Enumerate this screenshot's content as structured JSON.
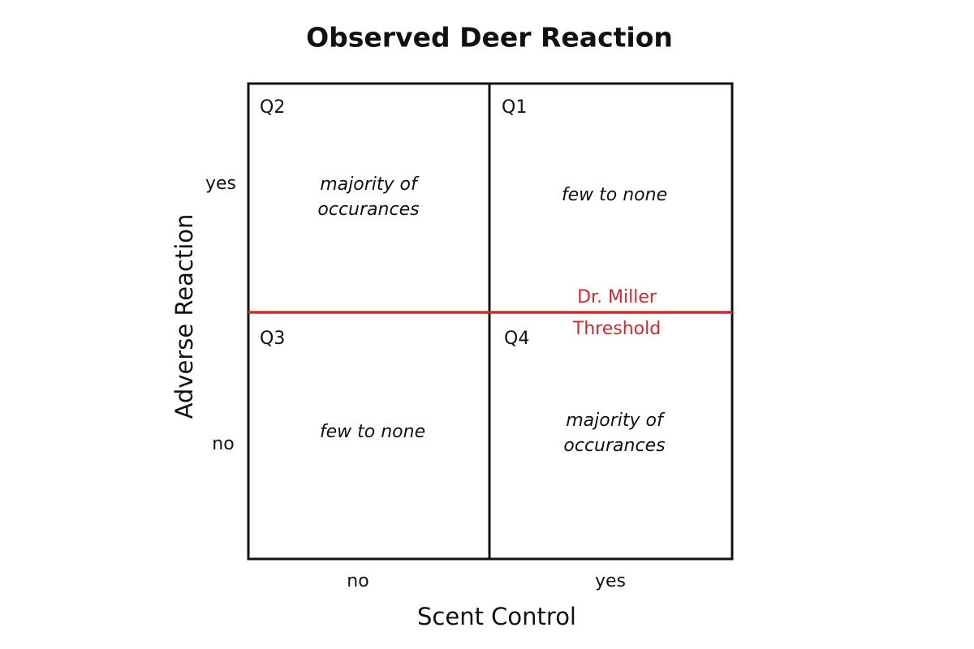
{
  "title": "Observed Deer Reaction",
  "x_axis": {
    "label": "Scent Control",
    "categories": [
      "no",
      "yes"
    ]
  },
  "y_axis": {
    "label": "Adverse Reaction",
    "categories": [
      "yes",
      "no"
    ]
  },
  "quadrants": [
    {
      "label": "Q2",
      "text": [
        "majority of",
        "occurances"
      ]
    },
    {
      "label": "Q1",
      "text": [
        "few to none"
      ]
    },
    {
      "label": "Q3",
      "text": [
        "few to none"
      ]
    },
    {
      "label": "Q4",
      "text": [
        "majority of",
        "occurances"
      ]
    }
  ],
  "threshold": {
    "label": [
      "Dr. Miller",
      "Threshold"
    ]
  }
}
